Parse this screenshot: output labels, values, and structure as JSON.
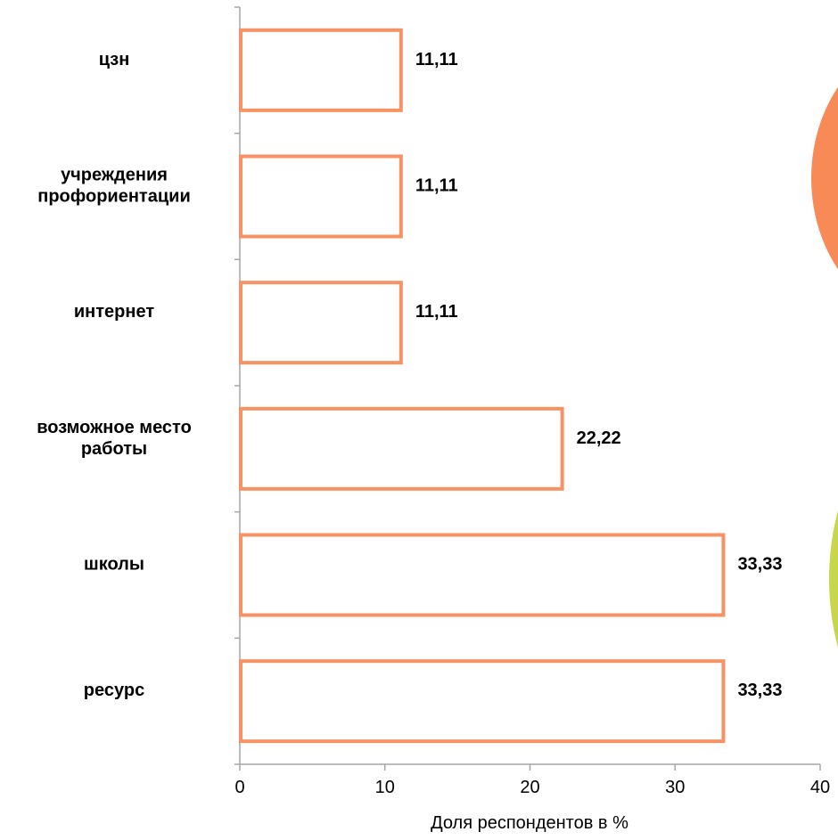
{
  "chart_data": {
    "type": "bar",
    "orientation": "horizontal",
    "categories": [
      "цзн",
      "учреждения профориентации",
      "интернет",
      "возможное место работы",
      "школы",
      "ресурс"
    ],
    "category_lines": [
      [
        "цзн"
      ],
      [
        "учреждения",
        "профориентации"
      ],
      [
        "интернет"
      ],
      [
        "возможное место",
        "работы"
      ],
      [
        "школы"
      ],
      [
        "ресурс"
      ]
    ],
    "values": [
      11.11,
      11.11,
      11.11,
      22.22,
      33.33,
      33.33
    ],
    "value_labels": [
      "11,11",
      "11,11",
      "11,11",
      "22,22",
      "33,33",
      "33,33"
    ],
    "xlim": [
      0,
      40
    ],
    "x_ticks": [
      0,
      10,
      20,
      30,
      40
    ],
    "x_tick_labels": [
      "0",
      "10",
      "20",
      "30",
      "40"
    ],
    "xlabel": "Доля респондентов в %",
    "ylabel": "",
    "title": "",
    "grid": false,
    "legend": "none",
    "colors": {
      "bar_outline": "#F79264",
      "bar_fill": "#FFFFFF",
      "axis": "#A6A6A6",
      "decor_orange": "#F78A56",
      "decor_green": "#C8D64B"
    }
  }
}
